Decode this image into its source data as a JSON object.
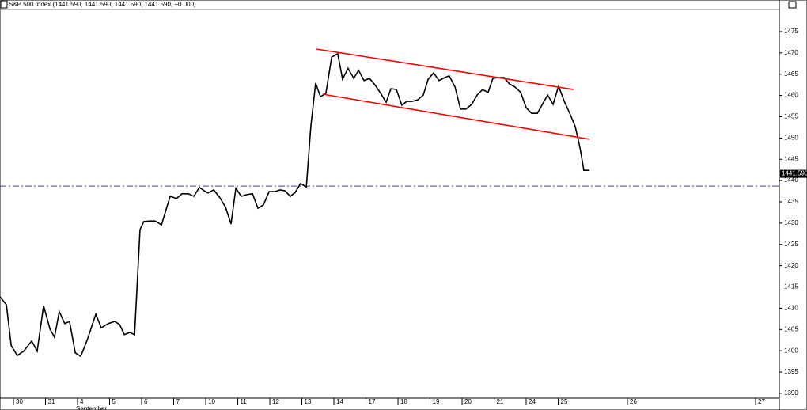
{
  "chart_data": {
    "type": "line",
    "title": "S&P 500 Index (1441.590, 1441.590, 1441.590, 1441.590, +0.000)",
    "color": "#000000",
    "x": [
      -0.42,
      -0.22,
      -0.07,
      0.12,
      0.32,
      0.57,
      0.74,
      0.94,
      1.14,
      1.28,
      1.43,
      1.6,
      1.75,
      1.93,
      2.1,
      2.3,
      2.57,
      2.74,
      2.96,
      3.16,
      3.31,
      3.46,
      3.63,
      3.78,
      3.95,
      4.07,
      4.27,
      4.42,
      4.62,
      4.89,
      5.09,
      5.26,
      5.46,
      5.63,
      5.8,
      5.95,
      6.07,
      6.25,
      6.44,
      6.62,
      6.79,
      6.94,
      7.11,
      7.28,
      7.46,
      7.63,
      7.8,
      7.98,
      8.15,
      8.32,
      8.47,
      8.64,
      8.79,
      8.96,
      9.14,
      9.28,
      9.43,
      9.58,
      9.75,
      9.93,
      10.12,
      10.27,
      10.44,
      10.62,
      10.77,
      10.94,
      11.11,
      11.28,
      11.46,
      11.63,
      11.78,
      11.95,
      12.12,
      12.27,
      12.44,
      12.62,
      12.79,
      12.94,
      13.11,
      13.28,
      13.46,
      13.6,
      13.78,
      13.95,
      14.12,
      14.3,
      14.47,
      14.64,
      14.81,
      14.96,
      15.14,
      15.31,
      15.48,
      15.65,
      15.83,
      16.0,
      16.17,
      16.35,
      16.52,
      16.67,
      16.84,
      17.01,
      17.19,
      17.36,
      17.53,
      17.68,
      17.8,
      17.98
    ],
    "values": [
      1412.7,
      1410.8,
      1401.2,
      1398.9,
      1399.9,
      1402.3,
      1399.9,
      1410.6,
      1405.1,
      1403.2,
      1409.2,
      1406.4,
      1406.9,
      1399.5,
      1398.7,
      1402.5,
      1408.6,
      1405.4,
      1406.4,
      1406.9,
      1406.2,
      1403.8,
      1404.3,
      1403.8,
      1428.5,
      1430.4,
      1430.5,
      1430.5,
      1429.6,
      1436.3,
      1435.8,
      1436.9,
      1436.9,
      1436.3,
      1438.4,
      1437.6,
      1437.1,
      1437.8,
      1436.0,
      1433.7,
      1429.8,
      1438.2,
      1436.3,
      1436.7,
      1436.9,
      1433.5,
      1434.3,
      1437.4,
      1437.4,
      1437.8,
      1437.6,
      1436.3,
      1437.2,
      1439.3,
      1438.5,
      1452.7,
      1462.9,
      1459.7,
      1460.5,
      1469.0,
      1469.8,
      1463.8,
      1466.4,
      1464.0,
      1465.9,
      1463.5,
      1464.0,
      1462.5,
      1460.5,
      1458.4,
      1461.6,
      1461.4,
      1457.7,
      1458.6,
      1458.6,
      1459.0,
      1460.1,
      1463.8,
      1465.3,
      1463.5,
      1464.2,
      1464.6,
      1462.0,
      1456.8,
      1456.8,
      1457.9,
      1460.1,
      1461.4,
      1460.7,
      1464.0,
      1464.2,
      1464.2,
      1462.7,
      1462.0,
      1460.7,
      1457.1,
      1455.8,
      1455.8,
      1458.1,
      1460.1,
      1457.9,
      1462.2,
      1458.6,
      1455.8,
      1452.7,
      1447.7,
      1442.4,
      1442.4
    ],
    "xlim": [
      -0.42,
      23.9
    ],
    "ylim": [
      1388.5,
      1480.2
    ],
    "xticks": [
      {
        "value": 0,
        "label": "30"
      },
      {
        "value": 1,
        "label": "31"
      },
      {
        "value": 2,
        "label": "4"
      },
      {
        "value": 3,
        "label": "5"
      },
      {
        "value": 4,
        "label": "6"
      },
      {
        "value": 5,
        "label": "7"
      },
      {
        "value": 6,
        "label": "10"
      },
      {
        "value": 7,
        "label": "11"
      },
      {
        "value": 8,
        "label": "12"
      },
      {
        "value": 9,
        "label": "13"
      },
      {
        "value": 10,
        "label": "14"
      },
      {
        "value": 11,
        "label": "17"
      },
      {
        "value": 12,
        "label": "18"
      },
      {
        "value": 13,
        "label": "19"
      },
      {
        "value": 14,
        "label": "20"
      },
      {
        "value": 15,
        "label": "21"
      },
      {
        "value": 16,
        "label": "24"
      },
      {
        "value": 17,
        "label": "25"
      },
      {
        "value": 19.16,
        "label": "26"
      },
      {
        "value": 23.16,
        "label": "27"
      }
    ],
    "yticks": [
      1390,
      1395,
      1400,
      1405,
      1410,
      1415,
      1420,
      1425,
      1430,
      1435,
      1440,
      1445,
      1450,
      1455,
      1460,
      1465,
      1470,
      1475
    ],
    "month_label": "September",
    "trend_lines": [
      {
        "color": "#ff0000",
        "x": [
          9.46,
          17.48
        ],
        "y": [
          1470.9,
          1461.4
        ]
      },
      {
        "color": "#ff0000",
        "x": [
          9.65,
          17.98
        ],
        "y": [
          1460.3,
          1449.7
        ]
      }
    ],
    "reference_line": {
      "value": 1438.7,
      "color": "#4040a0"
    },
    "last_value": {
      "value": 1441.59,
      "label": "1441.590"
    }
  }
}
